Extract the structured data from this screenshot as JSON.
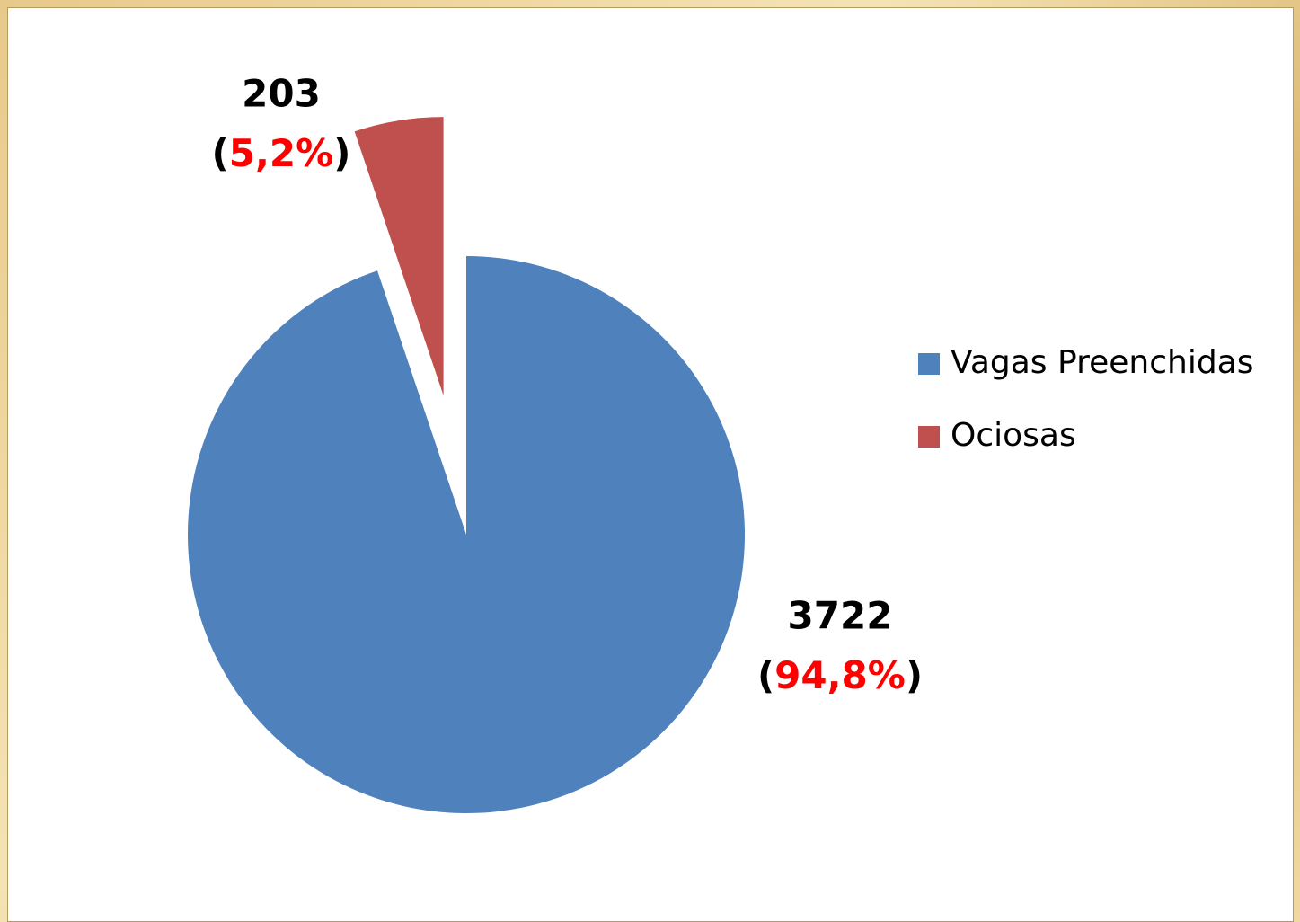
{
  "chart_data": {
    "type": "pie",
    "categories": [
      "Vagas Preenchidas",
      "Ociosas"
    ],
    "values": [
      3722,
      203
    ],
    "percents": [
      94.8,
      5.2
    ],
    "percent_labels": [
      "(94,8%)",
      "(5,2%)"
    ],
    "colors": [
      "#4f81bd",
      "#c0504d"
    ],
    "exploded": [
      false,
      true
    ],
    "legend": "right"
  }
}
